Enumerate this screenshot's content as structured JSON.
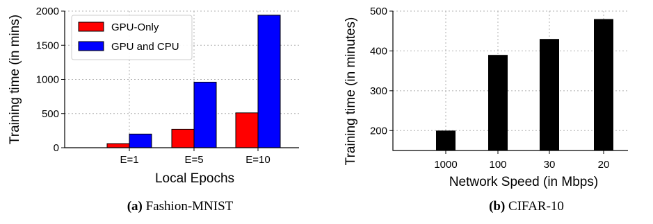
{
  "chart_data": [
    {
      "type": "bar",
      "categories": [
        "E=1",
        "E=5",
        "E=10"
      ],
      "series": [
        {
          "name": "GPU-Only",
          "color": "#ff0000",
          "values": [
            60,
            270,
            510
          ]
        },
        {
          "name": "GPU and CPU",
          "color": "#0000ff",
          "values": [
            200,
            960,
            1940
          ]
        }
      ],
      "xlabel": "Local Epochs",
      "ylabel": "Training time (in mins)",
      "ylim": [
        0,
        2000
      ],
      "yticks": [
        0,
        500,
        1000,
        1500,
        2000
      ],
      "grid": true,
      "legend_placement": "top-left",
      "caption_bold": "(a)",
      "caption_text": " Fashion-MNIST"
    },
    {
      "type": "bar",
      "categories": [
        "1000",
        "100",
        "30",
        "20"
      ],
      "series": [
        {
          "color": "#000000",
          "values": [
            200,
            390,
            430,
            480
          ]
        }
      ],
      "xlabel": "Network Speed (in Mbps)",
      "ylabel": "Training time (in minutes)",
      "ylim": [
        150,
        500
      ],
      "yticks": [
        200,
        300,
        400,
        500
      ],
      "grid": true,
      "caption_bold": "(b)",
      "caption_text": " CIFAR-10"
    }
  ]
}
